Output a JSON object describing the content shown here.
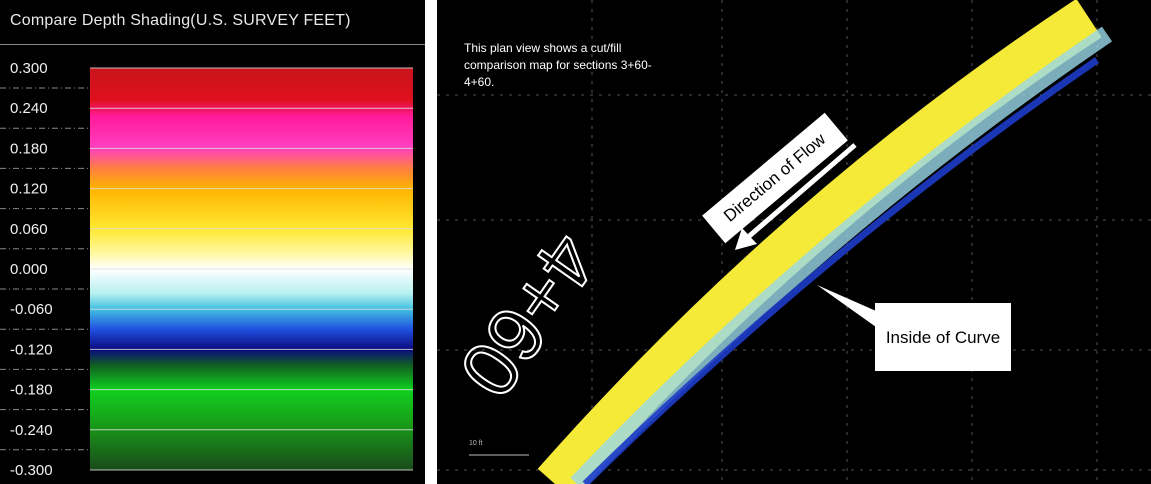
{
  "legend": {
    "title": "Compare Depth Shading(U.S. SURVEY FEET)",
    "labels": [
      "0.300",
      "0.240",
      "0.180",
      "0.120",
      "0.060",
      "0.000",
      "-0.060",
      "-0.120",
      "-0.180",
      "-0.240",
      "-0.300"
    ]
  },
  "map": {
    "caption": "This plan view shows a cut/fill comparison map for sections 3+60-4+60.",
    "flow": "Direction of Flow",
    "inside": "Inside of Curve",
    "station": "4+60",
    "scale": "10 ft"
  }
}
